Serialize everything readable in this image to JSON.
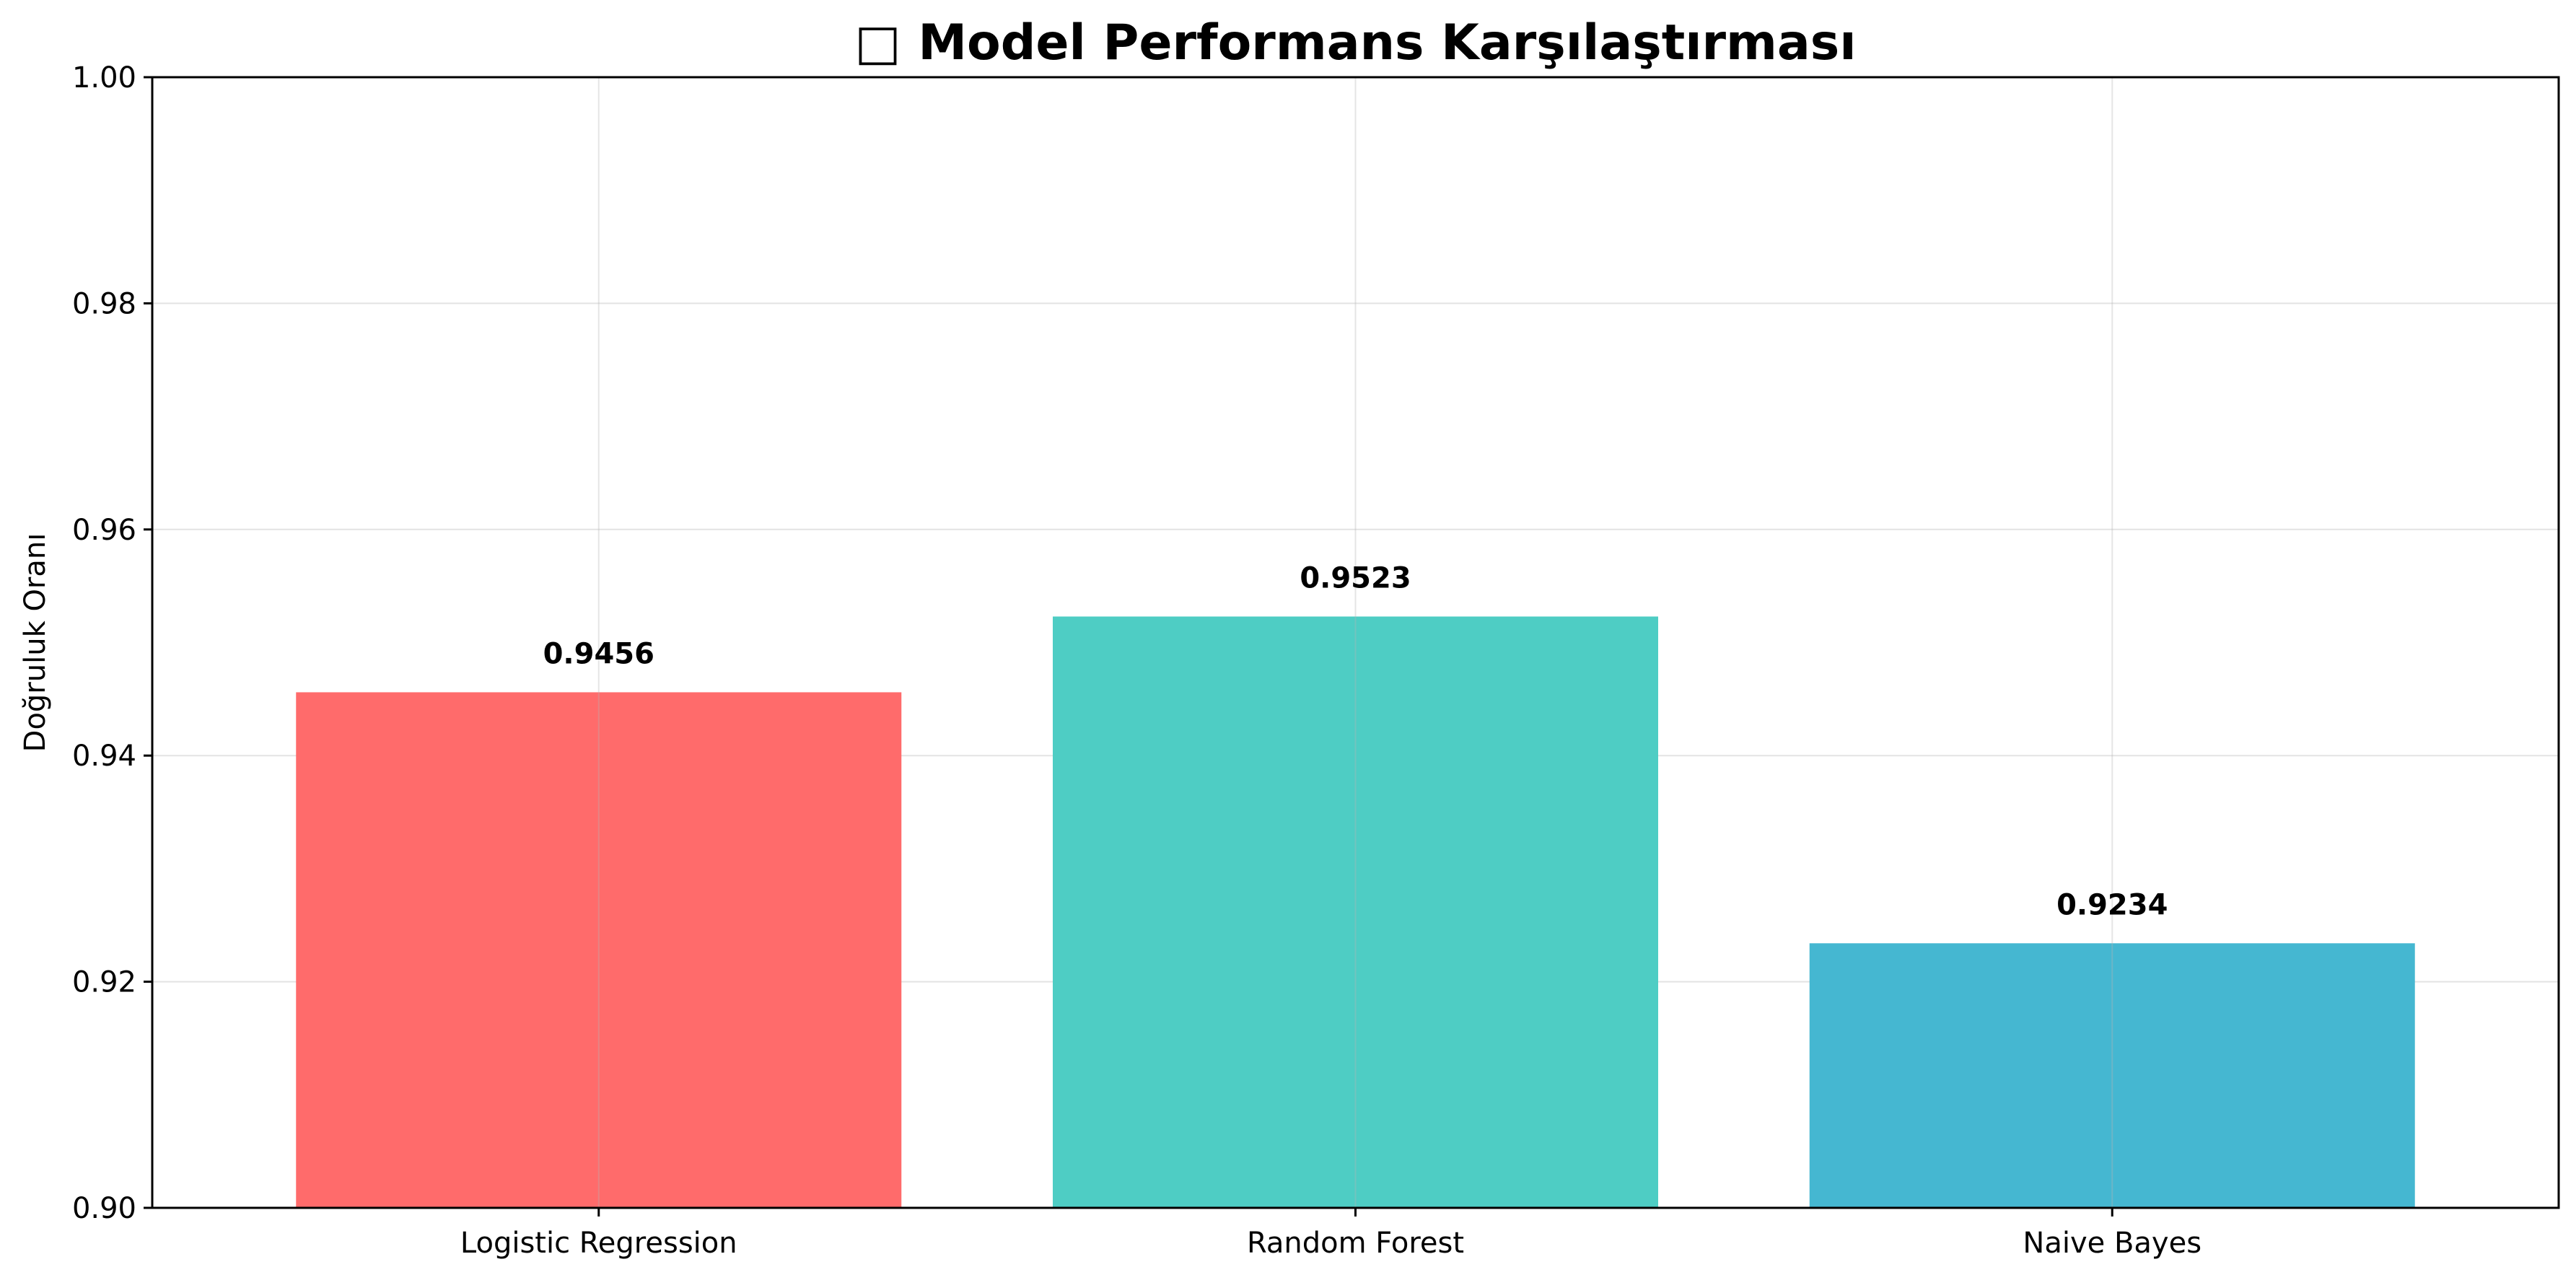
{
  "chart_data": {
    "type": "bar",
    "title": "□ Model Performans Karşılaştırması",
    "xlabel": "",
    "ylabel": "Doğruluk Oranı",
    "categories": [
      "Logistic Regression",
      "Random Forest",
      "Naive Bayes"
    ],
    "values": [
      0.9456,
      0.9523,
      0.9234
    ],
    "value_labels": [
      "0.9456",
      "0.9523",
      "0.9234"
    ],
    "bar_colors": [
      "#FF6B6B",
      "#4ECDC4",
      "#45B7D1"
    ],
    "ylim": [
      0.9,
      1.0
    ],
    "yticks": [
      0.9,
      0.92,
      0.94,
      0.96,
      0.98,
      1.0
    ],
    "ytick_labels": [
      "0.90",
      "0.92",
      "0.94",
      "0.96",
      "0.98",
      "1.00"
    ],
    "grid": true,
    "legend": "none"
  }
}
